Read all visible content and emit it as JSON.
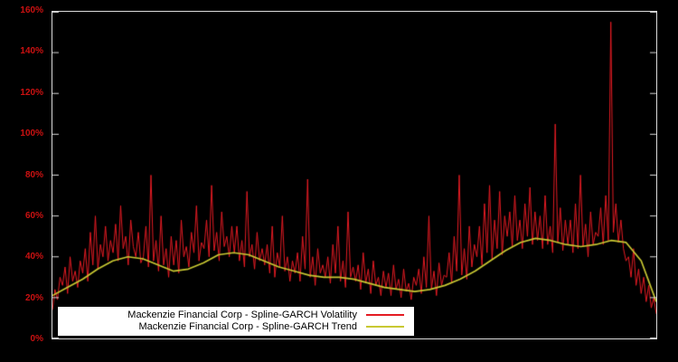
{
  "chart_data": {
    "type": "line",
    "title": "",
    "xlabel": "",
    "ylabel": "",
    "ylim": [
      0,
      160
    ],
    "y_ticks": [
      "0%",
      "20%",
      "40%",
      "60%",
      "80%",
      "100%",
      "120%",
      "140%",
      "160%"
    ],
    "x_ticks": [],
    "grid": false,
    "legend_position": "bottom-center",
    "background_color": "#000000",
    "axis_frame_color": "#dcdcdc",
    "tick_label_color": "#cc1111",
    "series": [
      {
        "name": "Mackenzie Financial Corp - Spline-GARCH Volatility",
        "color": "#e41b23",
        "unit": "%",
        "values": [
          14,
          24,
          19,
          30,
          26,
          35,
          22,
          40,
          28,
          33,
          25,
          38,
          32,
          44,
          28,
          52,
          36,
          60,
          34,
          46,
          40,
          55,
          38,
          48,
          42,
          56,
          38,
          65,
          44,
          50,
          36,
          58,
          45,
          40,
          52,
          37,
          40,
          55,
          35,
          80,
          38,
          48,
          33,
          60,
          36,
          44,
          30,
          50,
          36,
          48,
          32,
          58,
          40,
          45,
          35,
          52,
          42,
          65,
          38,
          47,
          44,
          58,
          40,
          75,
          43,
          52,
          38,
          62,
          45,
          50,
          40,
          55,
          42,
          55,
          38,
          48,
          35,
          72,
          40,
          46,
          34,
          52,
          38,
          44,
          36,
          46,
          32,
          55,
          30,
          42,
          35,
          60,
          33,
          40,
          28,
          38,
          32,
          42,
          28,
          50,
          34,
          78,
          30,
          40,
          26,
          44,
          32,
          36,
          30,
          40,
          27,
          46,
          32,
          55,
          28,
          38,
          25,
          62,
          30,
          35,
          28,
          36,
          24,
          42,
          27,
          34,
          22,
          38,
          26,
          30,
          21,
          33,
          25,
          32,
          21,
          36,
          24,
          29,
          20,
          34,
          23,
          27,
          19,
          30,
          26,
          34,
          22,
          40,
          25,
          60,
          24,
          33,
          21,
          37,
          26,
          31,
          30,
          42,
          27,
          50,
          33,
          80,
          31,
          44,
          29,
          55,
          35,
          46,
          40,
          55,
          36,
          66,
          42,
          75,
          39,
          58,
          44,
          72,
          41,
          60,
          50,
          62,
          45,
          70,
          48,
          58,
          44,
          66,
          50,
          74,
          46,
          62,
          48,
          60,
          44,
          70,
          46,
          55,
          42,
          105,
          47,
          64,
          43,
          58,
          46,
          58,
          42,
          66,
          44,
          80,
          45,
          56,
          40,
          62,
          46,
          52,
          50,
          64,
          46,
          70,
          48,
          155,
          52,
          66,
          47,
          58,
          44,
          38,
          40,
          30,
          44,
          26,
          34,
          22,
          30,
          18,
          26,
          15,
          20,
          12
        ]
      },
      {
        "name": "Mackenzie Financial Corp - Spline-GARCH Trend",
        "color": "#c8c832",
        "unit": "%",
        "values": [
          21,
          25,
          29,
          34,
          38,
          40,
          39,
          36,
          33,
          34,
          37,
          41,
          42,
          41,
          38,
          35,
          33,
          31,
          30,
          30,
          29,
          27,
          25,
          24,
          23,
          24,
          26,
          29,
          33,
          38,
          43,
          47,
          49,
          48,
          46,
          45,
          46,
          48,
          47,
          38,
          18
        ]
      }
    ]
  }
}
